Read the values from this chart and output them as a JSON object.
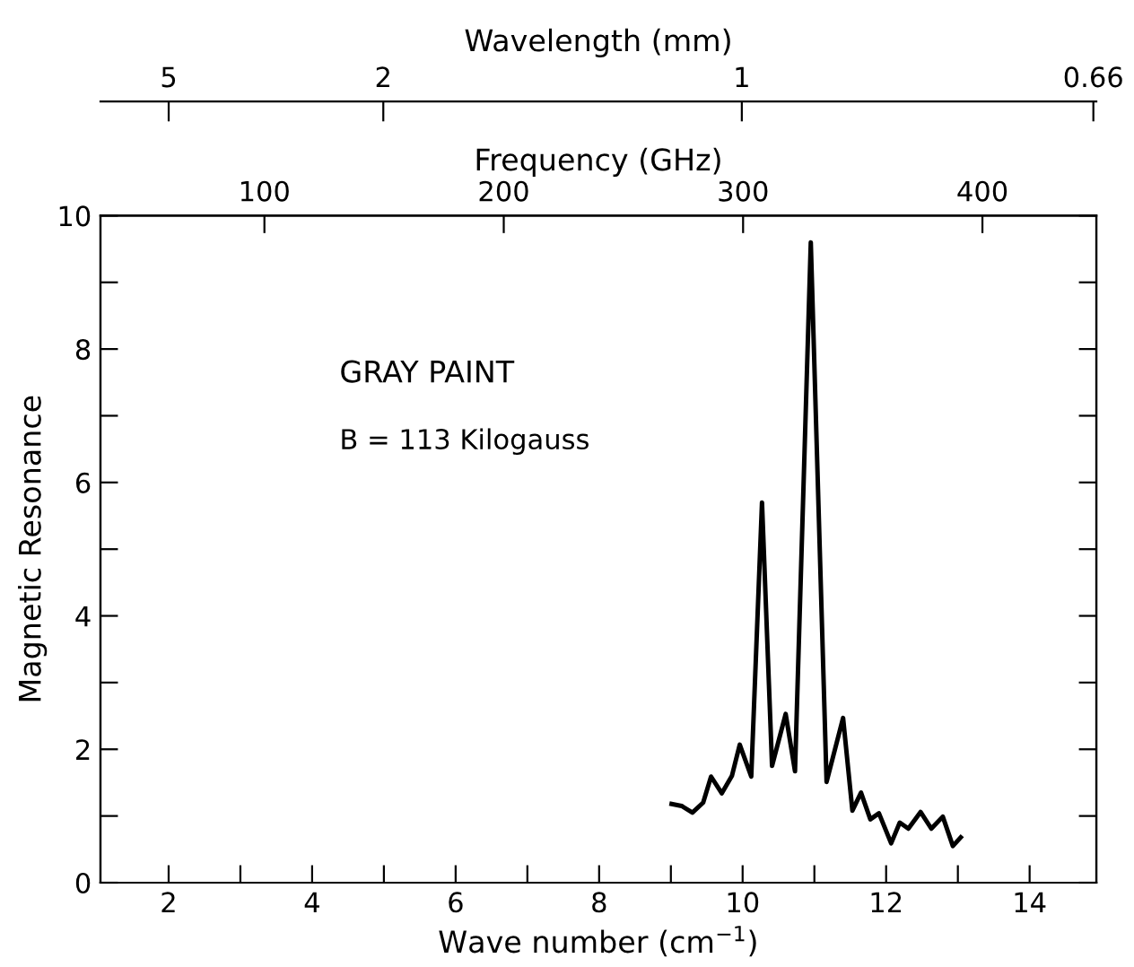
{
  "chart_data": {
    "type": "line",
    "xlabel": "Wave number (cm$^{−1}$)",
    "ylabel": "Magnetic Resonance",
    "x2label": "Frequency (GHz)",
    "annotations": [
      "GRAY PAINT",
      "B = 113 Kilogauss",
      "Wavelength (mm)",
      "5",
      "2",
      "1",
      "0.66"
    ],
    "xlim": [
      1.05,
      14.93
    ],
    "ylim": [
      0,
      10
    ],
    "xticks": [
      2,
      {
        "value": 3,
        "label": null
      },
      4,
      {
        "value": 5,
        "label": null
      },
      6,
      {
        "value": 7,
        "label": null
      },
      8,
      {
        "value": 9,
        "label": null
      },
      10,
      {
        "value": 11,
        "label": null
      },
      12,
      {
        "value": 13,
        "label": null
      },
      14
    ],
    "yticks": [
      0,
      {
        "value": 1,
        "label": null
      },
      2,
      {
        "value": 3,
        "label": null
      },
      4,
      {
        "value": 5,
        "label": null
      },
      6,
      {
        "value": 7,
        "label": null
      },
      8,
      {
        "value": 9,
        "label": null
      },
      10
    ],
    "x2lim": [
      31.5,
      447.6
    ],
    "x2ticks": [
      100,
      200,
      300,
      400
    ],
    "grid": false,
    "legend": false,
    "marker": "none",
    "line_style": "solid",
    "series": [
      {
        "color": "#000000",
        "x": [
          9.01,
          9.15,
          9.3,
          9.45,
          9.56,
          9.71,
          9.85,
          9.96,
          10.12,
          10.27,
          10.41,
          10.6,
          10.73,
          10.95,
          11.17,
          11.4,
          11.53,
          11.65,
          11.78,
          11.9,
          12.07,
          12.19,
          12.31,
          12.48,
          12.63,
          12.79,
          12.93,
          13.04
        ],
        "values": [
          1.18,
          1.15,
          1.05,
          1.2,
          1.59,
          1.34,
          1.6,
          2.07,
          1.59,
          5.7,
          1.75,
          2.53,
          1.67,
          9.6,
          1.51,
          2.47,
          1.08,
          1.35,
          0.95,
          1.04,
          0.59,
          0.9,
          0.81,
          1.06,
          0.81,
          0.99,
          0.55,
          0.68
        ]
      }
    ]
  }
}
